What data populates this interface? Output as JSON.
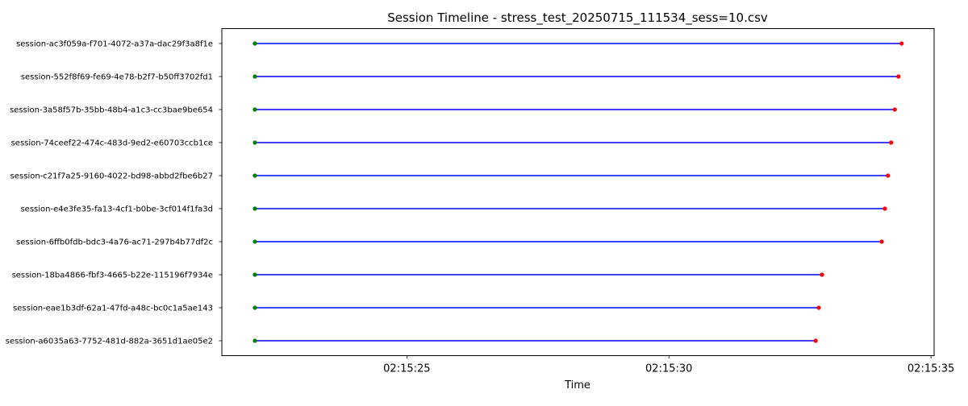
{
  "chart_data": {
    "type": "timeline",
    "title": "Session Timeline - stress_test_20250715_111534_sess=10.csv",
    "xlabel": "Time",
    "ylabel": "",
    "x_unit": "time of day",
    "xlim": [
      "02:15:21.470",
      "02:15:35.060"
    ],
    "xticks": [
      "02:15:25",
      "02:15:30",
      "02:15:35"
    ],
    "grid": false,
    "legend": "none",
    "colors": {
      "segment": "#0000ff",
      "start_marker": "#008000",
      "end_marker": "#ff0000"
    },
    "sessions": [
      {
        "label": "session-ac3f059a-f701-4072-a37a-dac29f3a8f1e",
        "start": "02:15:22.100",
        "end": "02:15:34.440"
      },
      {
        "label": "session-552f8f69-fe69-4e78-b2f7-b50ff3702fd1",
        "start": "02:15:22.100",
        "end": "02:15:34.380"
      },
      {
        "label": "session-3a58f57b-35bb-48b4-a1c3-cc3bae9be654",
        "start": "02:15:22.100",
        "end": "02:15:34.310"
      },
      {
        "label": "session-74ceef22-474c-483d-9ed2-e60703ccb1ce",
        "start": "02:15:22.100",
        "end": "02:15:34.240"
      },
      {
        "label": "session-c21f7a25-9160-4022-bd98-abbd2fbe6b27",
        "start": "02:15:22.100",
        "end": "02:15:34.180"
      },
      {
        "label": "session-e4e3fe35-fa13-4cf1-b0be-3cf014f1fa3d",
        "start": "02:15:22.100",
        "end": "02:15:34.120"
      },
      {
        "label": "session-6ffb0fdb-bdc3-4a76-ac71-297b4b77df2c",
        "start": "02:15:22.100",
        "end": "02:15:34.060"
      },
      {
        "label": "session-18ba4866-fbf3-4665-b22e-115196f7934e",
        "start": "02:15:22.100",
        "end": "02:15:32.920"
      },
      {
        "label": "session-eae1b3df-62a1-47fd-a48c-bc0c1a5ae143",
        "start": "02:15:22.100",
        "end": "02:15:32.860"
      },
      {
        "label": "session-a6035a63-7752-481d-882a-3651d1ae05e2",
        "start": "02:15:22.100",
        "end": "02:15:32.800"
      }
    ]
  }
}
